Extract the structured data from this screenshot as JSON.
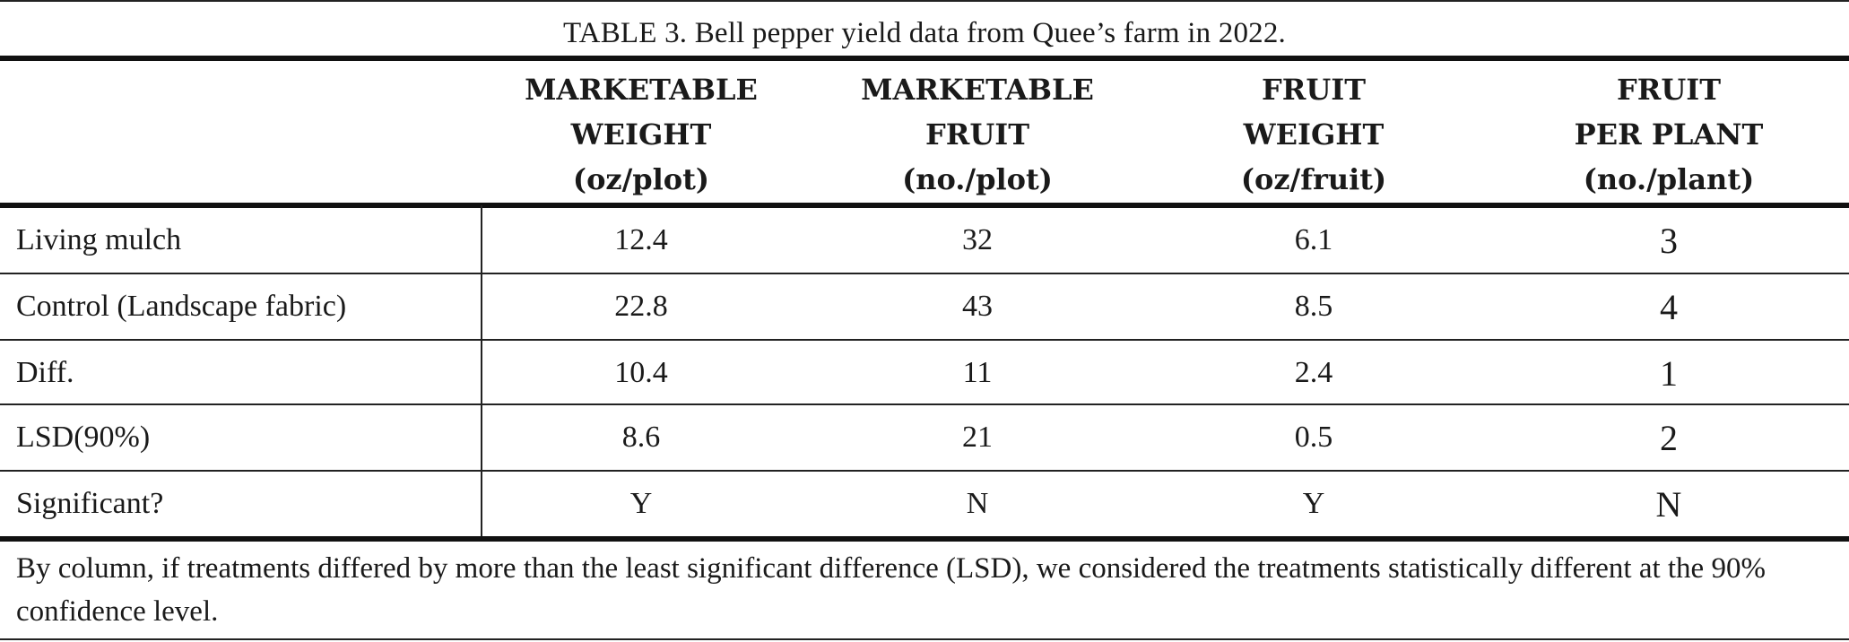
{
  "caption": "TABLE 3. Bell pepper yield data from Quee’s farm in 2022.",
  "headers": [
    {
      "line1": "MARKETABLE",
      "line2": "WEIGHT",
      "line3": "(oz/plot)"
    },
    {
      "line1": "MARKETABLE",
      "line2": "FRUIT",
      "line3": "(no./plot)"
    },
    {
      "line1": "FRUIT",
      "line2": "WEIGHT",
      "line3": "(oz/fruit)"
    },
    {
      "line1": "FRUIT",
      "line2": "PER PLANT",
      "line3": "(no./plant)"
    }
  ],
  "rows": [
    {
      "label": "Living mulch",
      "values": [
        "12.4",
        "32",
        "6.1",
        "3"
      ]
    },
    {
      "label": "Control (Landscape fabric)",
      "values": [
        "22.8",
        "43",
        "8.5",
        "4"
      ]
    },
    {
      "label": "Diff.",
      "values": [
        "10.4",
        "11",
        "2.4",
        "1"
      ]
    },
    {
      "label": "LSD(90%)",
      "values": [
        "8.6",
        "21",
        "0.5",
        "2"
      ]
    },
    {
      "label": "Significant?",
      "values": [
        "Y",
        "N",
        "Y",
        "N"
      ]
    }
  ],
  "footnote": "By column, if treatments differed by more than the least significant difference (LSD), we considered the treatments statistically different at the 90% confidence level."
}
